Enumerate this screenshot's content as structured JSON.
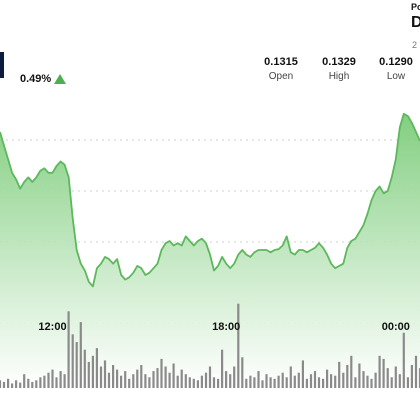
{
  "header": {
    "change": "0.49%",
    "open_value": "0.1315",
    "open_label": "Open",
    "high_value": "0.1329",
    "high_label": "High",
    "low_value": "0.1290",
    "low_label": "Low",
    "corner_top": "Po",
    "corner_mid": "D",
    "corner_bottom": "2"
  },
  "colors": {
    "line": "#5cb85c",
    "area_top": "#7ccc7a",
    "area_bottom": "#ffffff",
    "volume": "#8a8a8a",
    "up_arrow": "#4caf50",
    "grid": "#cfcfcf"
  },
  "chart_data": {
    "type": "area",
    "x_tick_labels": [
      "12:00",
      "18:00",
      "00:00"
    ],
    "x_tick_index": [
      13,
      56,
      98
    ],
    "price": [
      0.1325,
      0.1322,
      0.1319,
      0.1316,
      0.13145,
      0.13125,
      0.1314,
      0.1315,
      0.1314,
      0.1315,
      0.13165,
      0.1317,
      0.1316,
      0.1316,
      0.13175,
      0.13185,
      0.13178,
      0.1315,
      0.1306,
      0.1299,
      0.1296,
      0.12945,
      0.1292,
      0.1291,
      0.1295,
      0.1296,
      0.12975,
      0.1297,
      0.1296,
      0.1297,
      0.12935,
      0.12925,
      0.1293,
      0.1294,
      0.12955,
      0.1295,
      0.12935,
      0.1294,
      0.1295,
      0.1296,
      0.1299,
      0.13005,
      0.1301,
      0.13,
      0.13005,
      0.13,
      0.1302,
      0.1301,
      0.13,
      0.1301,
      0.13015,
      0.13005,
      0.1298,
      0.12945,
      0.12955,
      0.12975,
      0.1296,
      0.1295,
      0.1296,
      0.1298,
      0.1299,
      0.1298,
      0.12975,
      0.12985,
      0.1299,
      0.1299,
      0.1299,
      0.12985,
      0.1299,
      0.12992,
      0.13,
      0.1302,
      0.12985,
      0.1298,
      0.1299,
      0.1299,
      0.12985,
      0.1299,
      0.12995,
      0.13005,
      0.12995,
      0.1298,
      0.1296,
      0.1295,
      0.12955,
      0.1296,
      0.12995,
      0.1301,
      0.13015,
      0.1303,
      0.13045,
      0.1307,
      0.131,
      0.1312,
      0.1313,
      0.13115,
      0.1312,
      0.1315,
      0.1319,
      0.1326,
      0.1329,
      0.13285,
      0.1327,
      0.1325,
      0.1323
    ],
    "volume": [
      10,
      8,
      12,
      6,
      10,
      7,
      18,
      12,
      8,
      10,
      14,
      16,
      20,
      24,
      14,
      22,
      18,
      100,
      70,
      60,
      86,
      50,
      34,
      42,
      52,
      28,
      36,
      20,
      30,
      24,
      16,
      22,
      12,
      18,
      24,
      30,
      18,
      14,
      22,
      26,
      38,
      28,
      20,
      32,
      16,
      24,
      18,
      14,
      12,
      10,
      16,
      20,
      28,
      14,
      12,
      50,
      22,
      18,
      28,
      110,
      40,
      12,
      16,
      14,
      22,
      10,
      18,
      14,
      12,
      16,
      20,
      14,
      28,
      16,
      20,
      36,
      12,
      18,
      22,
      14,
      12,
      24,
      18,
      16,
      34,
      20,
      30,
      42,
      14,
      32,
      22,
      16,
      12,
      20,
      42,
      38,
      26,
      14,
      28,
      18,
      72,
      14,
      30,
      42,
      26
    ],
    "y_range": [
      0.1288,
      0.1336
    ],
    "volume_max": 120,
    "grid": true
  }
}
